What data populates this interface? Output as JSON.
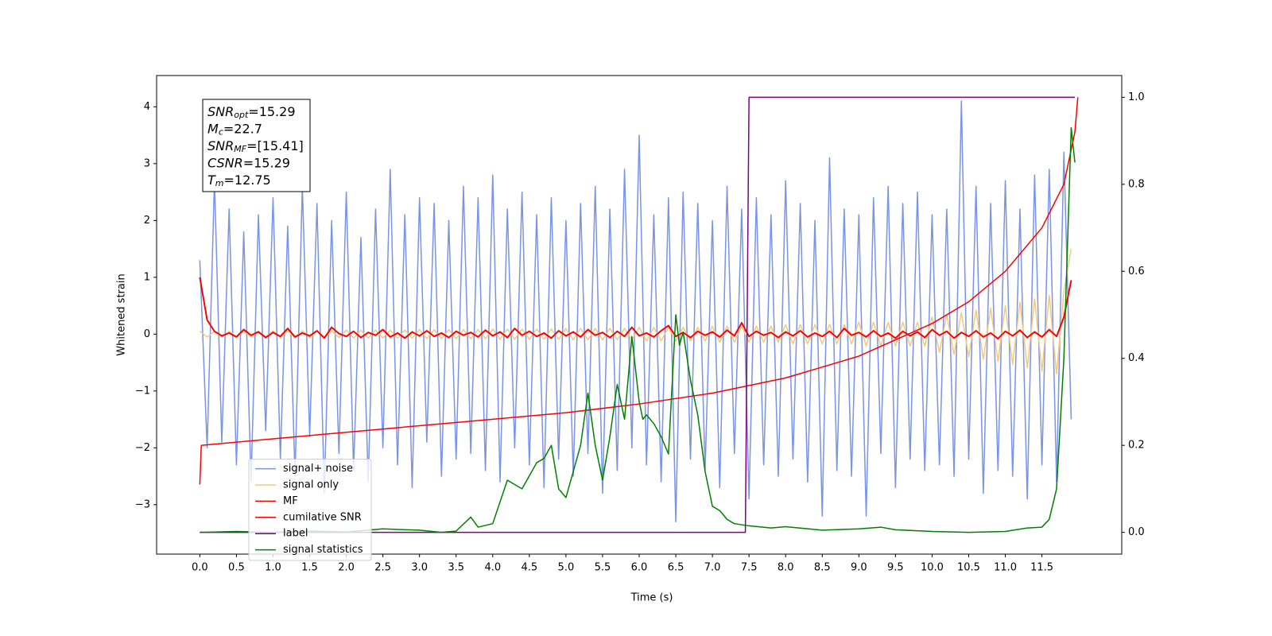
{
  "chart_data": {
    "type": "line",
    "xlabel": "Time (s)",
    "ylabel": "Whitened strain",
    "xlim": [
      -0.59,
      12.59
    ],
    "ylim": [
      -3.87,
      4.55
    ],
    "y2lim": [
      -0.05,
      1.05
    ],
    "xticks": [
      {
        "value": 0,
        "label": "0.0"
      },
      0.5,
      {
        "value": 1,
        "label": "1.0"
      },
      1.5,
      {
        "value": 2,
        "label": "2.0"
      },
      2.5,
      {
        "value": 3,
        "label": "3.0"
      },
      3.5,
      {
        "value": 4,
        "label": "4.0"
      },
      4.5,
      {
        "value": 5,
        "label": "5.0"
      },
      5.5,
      {
        "value": 6,
        "label": "6.0"
      },
      6.5,
      {
        "value": 7,
        "label": "7.0"
      },
      7.5,
      {
        "value": 8,
        "label": "8.0"
      },
      8.5,
      {
        "value": 9,
        "label": "9.0"
      },
      9.5,
      {
        "value": 10,
        "label": "10.0"
      },
      10.5,
      {
        "value": 11,
        "label": "11.0"
      },
      11.5
    ],
    "yticks": [
      {
        "value": -3,
        "label": "−3"
      },
      {
        "value": -2,
        "label": "−2"
      },
      {
        "value": -1,
        "label": "−1"
      },
      0,
      1,
      2,
      3,
      4
    ],
    "y2ticks": [
      {
        "value": 0,
        "label": "0.0"
      },
      0.2,
      0.4,
      0.6,
      0.8,
      {
        "value": 1,
        "label": "1.0"
      }
    ],
    "legend_loc": "lower left",
    "annotations": [
      {
        "symbol": "SNR",
        "sub": "opt",
        "text": "=15.29"
      },
      {
        "symbol": "M",
        "sub": "c",
        "text": "=22.7"
      },
      {
        "symbol": "SNR",
        "sub": "MF",
        "text": "=[15.41]"
      },
      {
        "symbol": "CSNR",
        "text": "=15.29"
      },
      {
        "symbol": "T",
        "sub": "m",
        "text": "=12.75"
      }
    ],
    "x": [
      0.0,
      0.1,
      0.2,
      0.3,
      0.4,
      0.5,
      0.6,
      0.7,
      0.8,
      0.9,
      1.0,
      1.1,
      1.2,
      1.3,
      1.4,
      1.5,
      1.6,
      1.7,
      1.8,
      1.9,
      2.0,
      2.1,
      2.2,
      2.3,
      2.4,
      2.5,
      2.6,
      2.7,
      2.8,
      2.9,
      3.0,
      3.1,
      3.2,
      3.3,
      3.4,
      3.5,
      3.6,
      3.7,
      3.8,
      3.9,
      4.0,
      4.1,
      4.2,
      4.3,
      4.4,
      4.5,
      4.6,
      4.7,
      4.8,
      4.9,
      5.0,
      5.1,
      5.2,
      5.3,
      5.4,
      5.5,
      5.6,
      5.7,
      5.8,
      5.9,
      6.0,
      6.1,
      6.2,
      6.3,
      6.4,
      6.5,
      6.6,
      6.7,
      6.8,
      6.9,
      7.0,
      7.1,
      7.2,
      7.3,
      7.4,
      7.5,
      7.6,
      7.7,
      7.8,
      7.9,
      8.0,
      8.1,
      8.2,
      8.3,
      8.4,
      8.5,
      8.6,
      8.7,
      8.8,
      8.9,
      9.0,
      9.1,
      9.2,
      9.3,
      9.4,
      9.5,
      9.6,
      9.7,
      9.8,
      9.9,
      10.0,
      10.1,
      10.2,
      10.3,
      10.4,
      10.5,
      10.6,
      10.7,
      10.8,
      10.9,
      11.0,
      11.1,
      11.2,
      11.3,
      11.4,
      11.5,
      11.6,
      11.7,
      11.8,
      11.9
    ],
    "series": [
      {
        "name": "signal+ noise",
        "color": "#7893e8",
        "values": [
          1.3,
          -2.0,
          2.7,
          -1.9,
          2.2,
          -2.3,
          1.8,
          -2.6,
          2.1,
          -1.7,
          2.4,
          -2.2,
          1.9,
          -2.5,
          2.6,
          -1.8,
          2.3,
          -2.8,
          2.0,
          -2.1,
          2.5,
          -2.4,
          1.7,
          -2.6,
          2.2,
          -2.0,
          2.9,
          -2.3,
          2.1,
          -2.7,
          2.4,
          -1.9,
          2.3,
          -2.5,
          2.0,
          -2.2,
          2.6,
          -2.1,
          2.4,
          -2.4,
          2.8,
          -2.6,
          2.2,
          -2.0,
          2.5,
          -2.3,
          2.1,
          -2.7,
          2.4,
          -2.2,
          2.0,
          -2.5,
          2.3,
          -2.1,
          2.6,
          -2.8,
          2.2,
          -2.4,
          2.9,
          -2.0,
          3.5,
          -2.3,
          2.1,
          -2.6,
          2.4,
          -3.3,
          2.5,
          -2.2,
          2.3,
          -2.4,
          2.0,
          -2.7,
          2.6,
          -2.1,
          2.2,
          -2.9,
          2.4,
          -2.3,
          2.1,
          -2.5,
          2.7,
          -2.2,
          2.3,
          -2.6,
          2.0,
          -3.2,
          3.1,
          -2.4,
          2.2,
          -2.5,
          2.1,
          -3.2,
          2.4,
          -2.1,
          2.6,
          -2.7,
          2.3,
          -2.2,
          2.5,
          -2.4,
          2.1,
          -2.3,
          2.2,
          -2.5,
          4.1,
          -2.2,
          2.6,
          -2.8,
          2.3,
          -2.4,
          2.7,
          -2.5,
          2.2,
          -2.9,
          2.8,
          -2.3,
          2.9,
          -2.6,
          3.2,
          -1.5
        ]
      },
      {
        "name": "signal only",
        "color": "#f5c979",
        "values": [
          0.05,
          -0.05,
          0.05,
          -0.05,
          0.05,
          -0.05,
          0.05,
          -0.05,
          0.05,
          -0.05,
          0.06,
          -0.06,
          0.06,
          -0.06,
          0.06,
          -0.06,
          0.06,
          -0.06,
          0.06,
          -0.06,
          0.07,
          -0.07,
          0.07,
          -0.07,
          0.07,
          -0.07,
          0.07,
          -0.07,
          0.07,
          -0.07,
          0.08,
          -0.08,
          0.08,
          -0.08,
          0.08,
          -0.08,
          0.08,
          -0.08,
          0.08,
          -0.08,
          0.09,
          -0.09,
          0.09,
          -0.09,
          0.09,
          -0.09,
          0.09,
          -0.09,
          0.09,
          -0.09,
          0.1,
          -0.1,
          0.1,
          -0.1,
          0.1,
          -0.1,
          0.1,
          -0.1,
          0.1,
          -0.1,
          0.12,
          -0.12,
          0.12,
          -0.12,
          0.12,
          -0.12,
          0.12,
          -0.12,
          0.12,
          -0.12,
          0.14,
          -0.14,
          0.14,
          -0.14,
          0.14,
          -0.14,
          0.14,
          -0.14,
          0.14,
          -0.14,
          0.17,
          -0.17,
          0.17,
          -0.17,
          0.17,
          -0.17,
          0.17,
          -0.17,
          0.17,
          -0.17,
          0.21,
          -0.21,
          0.21,
          -0.21,
          0.21,
          -0.21,
          0.21,
          -0.21,
          0.21,
          -0.21,
          0.3,
          -0.32,
          0.34,
          -0.36,
          0.38,
          -0.4,
          0.42,
          -0.44,
          0.46,
          -0.48,
          0.5,
          -0.53,
          0.56,
          -0.59,
          0.62,
          -0.65,
          0.68,
          -0.7,
          0.75,
          1.5
        ]
      },
      {
        "name": "MF",
        "color": "#ff0000",
        "width": 2,
        "values": [
          1.0,
          0.25,
          0.05,
          -0.03,
          0.02,
          -0.05,
          0.08,
          -0.02,
          0.04,
          -0.06,
          0.03,
          -0.04,
          0.1,
          -0.05,
          0.02,
          -0.03,
          0.06,
          -0.07,
          0.12,
          0.01,
          -0.04,
          0.05,
          -0.06,
          0.03,
          -0.02,
          0.08,
          -0.05,
          0.02,
          -0.07,
          0.04,
          -0.03,
          0.06,
          -0.04,
          0.02,
          -0.06,
          0.05,
          -0.02,
          0.03,
          -0.05,
          0.07,
          -0.03,
          0.04,
          -0.06,
          0.1,
          -0.02,
          0.05,
          -0.04,
          0.02,
          -0.07,
          0.06,
          -0.03,
          0.04,
          -0.05,
          0.08,
          -0.02,
          0.03,
          -0.06,
          0.05,
          -0.04,
          0.12,
          -0.03,
          0.02,
          -0.05,
          0.06,
          0.15,
          -0.04,
          0.03,
          -0.06,
          0.05,
          -0.02,
          0.04,
          -0.05,
          0.07,
          -0.03,
          0.2,
          -0.04,
          0.05,
          -0.02,
          0.03,
          -0.06,
          0.04,
          -0.03,
          0.06,
          -0.05,
          0.02,
          -0.04,
          0.05,
          -0.06,
          0.1,
          -0.02,
          0.03,
          -0.05,
          0.06,
          -0.04,
          0.02,
          -0.07,
          0.05,
          -0.03,
          0.04,
          -0.06,
          0.08,
          -0.02,
          0.05,
          -0.07,
          0.03,
          -0.04,
          0.06,
          -0.05,
          0.02,
          -0.08,
          0.05,
          -0.03,
          0.07,
          -0.06,
          0.04,
          -0.05,
          0.08,
          -0.04,
          0.3,
          0.95
        ]
      },
      {
        "name": "cumilative SNR",
        "color": "#ff0000",
        "axis": "y2",
        "x": [
          0,
          0.02,
          1,
          2,
          3,
          4,
          5,
          6,
          7,
          8,
          9,
          10,
          10.5,
          11,
          11.5,
          11.8,
          11.95,
          11.99
        ],
        "values": [
          0.11,
          0.2,
          0.215,
          0.23,
          0.245,
          0.26,
          0.275,
          0.295,
          0.32,
          0.355,
          0.405,
          0.48,
          0.53,
          0.6,
          0.7,
          0.8,
          0.92,
          1.0
        ]
      },
      {
        "name": "label",
        "color": "#800080",
        "axis": "y2",
        "x": [
          0,
          7.45,
          7.5,
          11.95
        ],
        "values": [
          0,
          0,
          1,
          1
        ]
      },
      {
        "name": "signal statistics",
        "color": "#008000",
        "axis": "y2",
        "x": [
          0,
          0.5,
          1,
          1.5,
          2,
          2.5,
          3,
          3.3,
          3.5,
          3.7,
          3.8,
          4,
          4.1,
          4.2,
          4.4,
          4.5,
          4.6,
          4.7,
          4.8,
          4.9,
          5.0,
          5.1,
          5.2,
          5.3,
          5.4,
          5.5,
          5.6,
          5.7,
          5.8,
          5.9,
          6.0,
          6.05,
          6.1,
          6.2,
          6.3,
          6.4,
          6.5,
          6.55,
          6.6,
          6.7,
          6.8,
          6.9,
          7.0,
          7.1,
          7.2,
          7.3,
          7.5,
          7.8,
          8.0,
          8.5,
          9.0,
          9.3,
          9.5,
          10,
          10.5,
          11,
          11.3,
          11.5,
          11.6,
          11.7,
          11.8,
          11.9,
          11.95
        ],
        "values": [
          0,
          0.002,
          0.0,
          0.003,
          0.001,
          0.008,
          0.005,
          0.0,
          0.003,
          0.035,
          0.012,
          0.02,
          0.07,
          0.12,
          0.1,
          0.13,
          0.16,
          0.17,
          0.2,
          0.1,
          0.08,
          0.14,
          0.2,
          0.32,
          0.2,
          0.12,
          0.22,
          0.34,
          0.26,
          0.45,
          0.3,
          0.26,
          0.27,
          0.25,
          0.22,
          0.18,
          0.5,
          0.43,
          0.46,
          0.35,
          0.27,
          0.14,
          0.06,
          0.05,
          0.03,
          0.02,
          0.015,
          0.01,
          0.013,
          0.005,
          0.008,
          0.012,
          0.006,
          0.002,
          0.0,
          0.002,
          0.01,
          0.012,
          0.03,
          0.1,
          0.4,
          0.93,
          0.85
        ]
      }
    ]
  }
}
